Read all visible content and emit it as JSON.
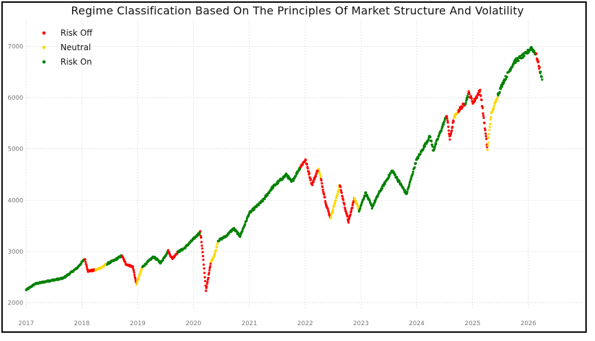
{
  "chart_data": {
    "type": "scatter",
    "title": "Regime Classification Based On The Principles Of Market Structure And Volatility",
    "xlabel": "",
    "ylabel": "",
    "x_ticks": [
      "2017",
      "2018",
      "2019",
      "2020",
      "2021",
      "2022",
      "2023",
      "2024",
      "2025",
      "2026"
    ],
    "y_ticks": [
      "2000",
      "3000",
      "4000",
      "5000",
      "6000",
      "7000"
    ],
    "xlim": [
      "2017-01-01",
      "2026-12-31"
    ],
    "ylim": [
      1900,
      7500
    ],
    "grid": true,
    "legend_position": "top-left",
    "colors": {
      "Risk Off": "#ff0000",
      "Neutral": "#ffd700",
      "Risk On": "#008000"
    },
    "series": [
      {
        "name": "Risk Off"
      },
      {
        "name": "Neutral"
      },
      {
        "name": "Risk On"
      }
    ],
    "path_points": [
      {
        "x": "2017-01-01",
        "y": 2250,
        "regime": "Risk On"
      },
      {
        "x": "2017-03-01",
        "y": 2370,
        "regime": "Risk On"
      },
      {
        "x": "2017-06-01",
        "y": 2430,
        "regime": "Risk On"
      },
      {
        "x": "2017-09-01",
        "y": 2480,
        "regime": "Risk On"
      },
      {
        "x": "2017-12-01",
        "y": 2680,
        "regime": "Risk On"
      },
      {
        "x": "2018-01-20",
        "y": 2860,
        "regime": "Risk On"
      },
      {
        "x": "2018-02-10",
        "y": 2620,
        "regime": "Risk Off"
      },
      {
        "x": "2018-04-01",
        "y": 2640,
        "regime": "Risk Off"
      },
      {
        "x": "2018-05-15",
        "y": 2700,
        "regime": "Neutral"
      },
      {
        "x": "2018-06-15",
        "y": 2760,
        "regime": "Neutral"
      },
      {
        "x": "2018-08-01",
        "y": 2830,
        "regime": "Risk On"
      },
      {
        "x": "2018-09-20",
        "y": 2920,
        "regime": "Risk On"
      },
      {
        "x": "2018-10-15",
        "y": 2760,
        "regime": "Risk Off"
      },
      {
        "x": "2018-12-01",
        "y": 2700,
        "regime": "Risk Off"
      },
      {
        "x": "2018-12-24",
        "y": 2360,
        "regime": "Risk Off"
      },
      {
        "x": "2019-02-01",
        "y": 2700,
        "regime": "Neutral"
      },
      {
        "x": "2019-04-15",
        "y": 2900,
        "regime": "Risk On"
      },
      {
        "x": "2019-06-01",
        "y": 2780,
        "regime": "Risk On"
      },
      {
        "x": "2019-07-20",
        "y": 3010,
        "regime": "Risk On"
      },
      {
        "x": "2019-08-15",
        "y": 2860,
        "regime": "Risk Off"
      },
      {
        "x": "2019-09-20",
        "y": 2990,
        "regime": "Risk Off"
      },
      {
        "x": "2019-11-01",
        "y": 3060,
        "regime": "Risk On"
      },
      {
        "x": "2020-02-15",
        "y": 3380,
        "regime": "Risk On"
      },
      {
        "x": "2020-03-01",
        "y": 3000,
        "regime": "Risk Off"
      },
      {
        "x": "2020-03-23",
        "y": 2240,
        "regime": "Risk Off"
      },
      {
        "x": "2020-04-25",
        "y": 2800,
        "regime": "Risk Off"
      },
      {
        "x": "2020-05-20",
        "y": 2950,
        "regime": "Neutral"
      },
      {
        "x": "2020-06-10",
        "y": 3210,
        "regime": "Neutral"
      },
      {
        "x": "2020-08-01",
        "y": 3300,
        "regime": "Risk On"
      },
      {
        "x": "2020-09-20",
        "y": 3450,
        "regime": "Risk On"
      },
      {
        "x": "2020-11-01",
        "y": 3300,
        "regime": "Risk On"
      },
      {
        "x": "2021-01-01",
        "y": 3750,
        "regime": "Risk On"
      },
      {
        "x": "2021-04-01",
        "y": 4000,
        "regime": "Risk On"
      },
      {
        "x": "2021-06-01",
        "y": 4250,
        "regime": "Risk On"
      },
      {
        "x": "2021-09-01",
        "y": 4500,
        "regime": "Risk On"
      },
      {
        "x": "2021-10-05",
        "y": 4350,
        "regime": "Risk On"
      },
      {
        "x": "2021-12-01",
        "y": 4650,
        "regime": "Risk On"
      },
      {
        "x": "2022-01-03",
        "y": 4790,
        "regime": "Risk Off"
      },
      {
        "x": "2022-02-15",
        "y": 4300,
        "regime": "Risk Off"
      },
      {
        "x": "2022-03-29",
        "y": 4620,
        "regime": "Risk Off"
      },
      {
        "x": "2022-04-15",
        "y": 4400,
        "regime": "Neutral"
      },
      {
        "x": "2022-05-20",
        "y": 3900,
        "regime": "Risk Off"
      },
      {
        "x": "2022-06-16",
        "y": 3660,
        "regime": "Risk Off"
      },
      {
        "x": "2022-07-20",
        "y": 4000,
        "regime": "Neutral"
      },
      {
        "x": "2022-08-16",
        "y": 4300,
        "regime": "Neutral"
      },
      {
        "x": "2022-09-15",
        "y": 3900,
        "regime": "Risk Off"
      },
      {
        "x": "2022-10-12",
        "y": 3580,
        "regime": "Risk Off"
      },
      {
        "x": "2022-11-20",
        "y": 4050,
        "regime": "Risk Off"
      },
      {
        "x": "2022-12-20",
        "y": 3800,
        "regime": "Neutral"
      },
      {
        "x": "2023-02-01",
        "y": 4150,
        "regime": "Risk On"
      },
      {
        "x": "2023-03-15",
        "y": 3860,
        "regime": "Risk On"
      },
      {
        "x": "2023-05-01",
        "y": 4150,
        "regime": "Risk On"
      },
      {
        "x": "2023-07-25",
        "y": 4580,
        "regime": "Risk On"
      },
      {
        "x": "2023-10-27",
        "y": 4120,
        "regime": "Risk On"
      },
      {
        "x": "2023-12-29",
        "y": 4770,
        "regime": "Risk On"
      },
      {
        "x": "2024-03-28",
        "y": 5250,
        "regime": "Risk On"
      },
      {
        "x": "2024-04-19",
        "y": 4970,
        "regime": "Risk On"
      },
      {
        "x": "2024-07-16",
        "y": 5660,
        "regime": "Risk On"
      },
      {
        "x": "2024-08-05",
        "y": 5190,
        "regime": "Risk Off"
      },
      {
        "x": "2024-09-01",
        "y": 5600,
        "regime": "Risk Off"
      },
      {
        "x": "2024-10-01",
        "y": 5750,
        "regime": "Neutral"
      },
      {
        "x": "2024-11-15",
        "y": 5900,
        "regime": "Risk Off"
      },
      {
        "x": "2024-12-06",
        "y": 6090,
        "regime": "Risk On"
      },
      {
        "x": "2025-01-05",
        "y": 5900,
        "regime": "Risk Off"
      },
      {
        "x": "2025-02-19",
        "y": 6140,
        "regime": "Risk Off"
      },
      {
        "x": "2025-03-15",
        "y": 5600,
        "regime": "Risk Off"
      },
      {
        "x": "2025-04-08",
        "y": 4980,
        "regime": "Risk Off"
      },
      {
        "x": "2025-05-01",
        "y": 5650,
        "regime": "Neutral"
      },
      {
        "x": "2025-06-15",
        "y": 6050,
        "regime": "Neutral"
      },
      {
        "x": "2025-07-20",
        "y": 6300,
        "regime": "Risk On"
      },
      {
        "x": "2025-10-01",
        "y": 6700,
        "regime": "Risk On"
      },
      {
        "x": "2025-12-15",
        "y": 6850,
        "regime": "Risk On"
      },
      {
        "x": "2026-01-20",
        "y": 6970,
        "regime": "Risk On"
      },
      {
        "x": "2026-02-20",
        "y": 6850,
        "regime": "Risk On"
      },
      {
        "x": "2026-03-20",
        "y": 6500,
        "regime": "Risk Off"
      },
      {
        "x": "2026-04-01",
        "y": 6350,
        "regime": "Risk On"
      }
    ]
  }
}
